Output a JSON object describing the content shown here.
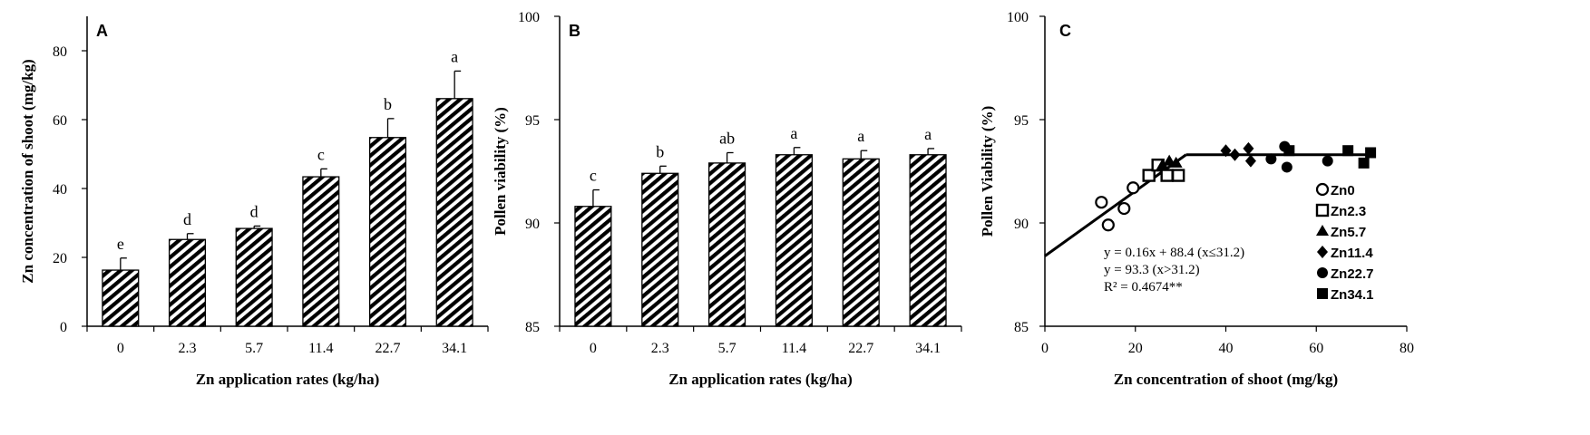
{
  "chart_data": [
    {
      "panel": "A",
      "type": "bar",
      "xlabel": "Zn application rates (kg/ha)",
      "ylabel": "Zn concentration of shoot (mg/kg)",
      "categories": [
        "0",
        "2.3",
        "5.7",
        "11.4",
        "22.7",
        "34.1"
      ],
      "values": [
        16.3,
        25.2,
        28.4,
        43.4,
        54.8,
        66.1
      ],
      "errors": [
        3.5,
        1.7,
        0.7,
        2.3,
        5.5,
        8.0
      ],
      "letters": [
        "e",
        "d",
        "d",
        "c",
        "b",
        "a"
      ],
      "ylim": [
        0,
        90
      ],
      "yticks": [
        "0",
        "20",
        "40",
        "60",
        "80"
      ]
    },
    {
      "panel": "B",
      "type": "bar",
      "xlabel": "Zn application rates (kg/ha)",
      "ylabel": "Pollen viability (%)",
      "categories": [
        "0",
        "2.3",
        "5.7",
        "11.4",
        "22.7",
        "34.1"
      ],
      "values": [
        90.8,
        92.4,
        92.9,
        93.3,
        93.1,
        93.3
      ],
      "errors": [
        0.8,
        0.35,
        0.5,
        0.35,
        0.4,
        0.3
      ],
      "letters": [
        "c",
        "b",
        "ab",
        "a",
        "a",
        "a"
      ],
      "ylim": [
        85,
        100
      ],
      "yticks": [
        "85",
        "90",
        "95",
        "100"
      ]
    },
    {
      "panel": "C",
      "type": "scatter",
      "xlabel": "Zn concentration of shoot (mg/kg)",
      "ylabel": "Pollen Viability  (%)",
      "xlim": [
        0,
        80
      ],
      "ylim": [
        85,
        100
      ],
      "xticks": [
        "0",
        "20",
        "40",
        "60",
        "80"
      ],
      "yticks": [
        "85",
        "90",
        "95",
        "100"
      ],
      "series": [
        {
          "name": "Zn0",
          "marker": "open-circle",
          "points": [
            [
              12.5,
              91.0
            ],
            [
              14.0,
              89.9
            ],
            [
              17.5,
              90.7
            ],
            [
              19.5,
              91.7
            ]
          ]
        },
        {
          "name": "Zn2.3",
          "marker": "open-square",
          "points": [
            [
              23.0,
              92.3
            ],
            [
              25.0,
              92.8
            ],
            [
              27.0,
              92.3
            ],
            [
              29.5,
              92.3
            ]
          ]
        },
        {
          "name": "Zn5.7",
          "marker": "triangle",
          "points": [
            [
              26.0,
              92.8
            ],
            [
              27.5,
              93.0
            ],
            [
              29.0,
              92.9
            ]
          ]
        },
        {
          "name": "Zn11.4",
          "marker": "diamond",
          "points": [
            [
              40.0,
              93.5
            ],
            [
              42.0,
              93.3
            ],
            [
              45.0,
              93.6
            ],
            [
              45.5,
              93.0
            ]
          ]
        },
        {
          "name": "Zn22.7",
          "marker": "circle",
          "points": [
            [
              50.0,
              93.1
            ],
            [
              53.0,
              93.7
            ],
            [
              53.5,
              92.7
            ],
            [
              62.5,
              93.0
            ]
          ]
        },
        {
          "name": "Zn34.1",
          "marker": "square",
          "points": [
            [
              54.0,
              93.5
            ],
            [
              67.0,
              93.5
            ],
            [
              70.5,
              92.9
            ],
            [
              72.0,
              93.4
            ]
          ]
        }
      ],
      "fit": {
        "segments": [
          [
            [
              0,
              88.4
            ],
            [
              31.2,
              93.3
            ]
          ],
          [
            [
              31.2,
              93.3
            ],
            [
              72.5,
              93.3
            ]
          ]
        ],
        "equation_lines": [
          "y = 0.16x + 88.4 (x≤31.2)",
          "y = 93.3 (x>31.2)",
          "R² = 0.4674**"
        ]
      }
    }
  ]
}
